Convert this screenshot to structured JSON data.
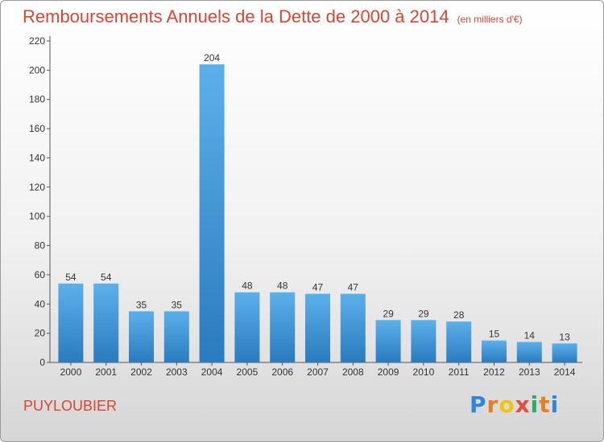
{
  "header": {
    "title": "Remboursements Annuels de la Dette de 2000 à 2014",
    "unit": "(en milliers d'€)"
  },
  "footer": {
    "place": "PUYLOUBIER",
    "logo": {
      "letters": [
        "P",
        "r",
        "o",
        "x",
        "i",
        "t",
        "i"
      ],
      "colors": [
        "#2e86de",
        "#e67e22",
        "#f1c40f",
        "#e74c3c",
        "#27ae60",
        "#e67e22",
        "#2e86de"
      ]
    }
  },
  "chart_data": {
    "type": "bar",
    "categories": [
      "2000",
      "2001",
      "2002",
      "2003",
      "2004",
      "2005",
      "2006",
      "2007",
      "2008",
      "2009",
      "2010",
      "2011",
      "2012",
      "2013",
      "2014"
    ],
    "values": [
      54,
      54,
      35,
      35,
      204,
      48,
      48,
      47,
      47,
      29,
      29,
      28,
      15,
      14,
      13
    ],
    "ylim": [
      0,
      220
    ],
    "yticks": [
      "0",
      "20",
      "40",
      "60",
      "80",
      "100",
      "120",
      "140",
      "160",
      "180",
      "200",
      "220"
    ],
    "grid": false,
    "bar_color": "#3a95d9",
    "axis_color": "#555555"
  }
}
